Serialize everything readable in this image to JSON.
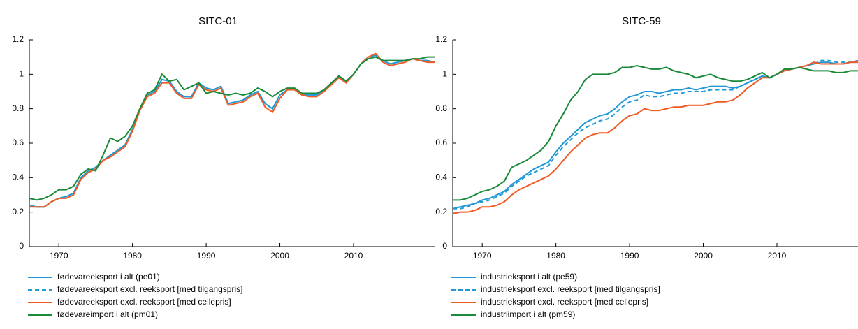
{
  "chart_data": [
    {
      "type": "line",
      "title": "SITC-01",
      "x": [
        1966,
        1967,
        1968,
        1969,
        1970,
        1971,
        1972,
        1973,
        1974,
        1975,
        1976,
        1977,
        1978,
        1979,
        1980,
        1981,
        1982,
        1983,
        1984,
        1985,
        1986,
        1987,
        1988,
        1989,
        1990,
        1991,
        1992,
        1993,
        1994,
        1995,
        1996,
        1997,
        1998,
        1999,
        2000,
        2001,
        2002,
        2003,
        2004,
        2005,
        2006,
        2007,
        2008,
        2009,
        2010,
        2011,
        2012,
        2013,
        2014,
        2015,
        2016,
        2017,
        2018,
        2019,
        2020,
        2021
      ],
      "xlim": [
        1966,
        2021
      ],
      "xticks": [
        1970,
        1980,
        1990,
        2000,
        2010
      ],
      "ylim": [
        0,
        1.2
      ],
      "yticks": [
        0,
        0.2,
        0.4,
        0.6,
        0.8,
        1,
        1.2
      ],
      "series": [
        {
          "name": "fødevareeksport i alt (pe01)",
          "color": "#1f9ad6",
          "values": [
            0.24,
            0.23,
            0.23,
            0.26,
            0.28,
            0.29,
            0.31,
            0.4,
            0.44,
            0.46,
            0.5,
            0.53,
            0.56,
            0.59,
            0.68,
            0.8,
            0.88,
            0.9,
            0.97,
            0.96,
            0.9,
            0.87,
            0.87,
            0.95,
            0.92,
            0.91,
            0.93,
            0.83,
            0.84,
            0.85,
            0.88,
            0.9,
            0.83,
            0.8,
            0.88,
            0.91,
            0.91,
            0.88,
            0.88,
            0.88,
            0.91,
            0.95,
            0.99,
            0.96,
            1.0,
            1.06,
            1.1,
            1.11,
            1.08,
            1.06,
            1.07,
            1.08,
            1.09,
            1.08,
            1.08,
            1.07
          ]
        },
        {
          "name": "fødevareeksport excl. reeksport [med tilgangspris]",
          "color": "#1f9ad6",
          "dashed": true,
          "values": [
            0.24,
            0.23,
            0.23,
            0.26,
            0.28,
            0.29,
            0.31,
            0.4,
            0.44,
            0.46,
            0.5,
            0.53,
            0.56,
            0.59,
            0.68,
            0.8,
            0.88,
            0.9,
            0.97,
            0.96,
            0.9,
            0.87,
            0.87,
            0.95,
            0.92,
            0.91,
            0.93,
            0.83,
            0.84,
            0.85,
            0.88,
            0.9,
            0.83,
            0.8,
            0.88,
            0.91,
            0.91,
            0.88,
            0.88,
            0.88,
            0.91,
            0.95,
            0.99,
            0.96,
            1.0,
            1.06,
            1.1,
            1.11,
            1.08,
            1.06,
            1.07,
            1.08,
            1.09,
            1.08,
            1.08,
            1.07
          ]
        },
        {
          "name": "fødevareeksport excl. reeksport [med cellepris]",
          "color": "#f15a24",
          "values": [
            0.23,
            0.23,
            0.23,
            0.26,
            0.28,
            0.28,
            0.3,
            0.39,
            0.43,
            0.45,
            0.5,
            0.52,
            0.55,
            0.58,
            0.67,
            0.79,
            0.87,
            0.89,
            0.95,
            0.95,
            0.89,
            0.86,
            0.86,
            0.94,
            0.91,
            0.9,
            0.92,
            0.82,
            0.83,
            0.84,
            0.87,
            0.89,
            0.81,
            0.78,
            0.86,
            0.91,
            0.91,
            0.88,
            0.87,
            0.87,
            0.9,
            0.94,
            0.98,
            0.95,
            1.0,
            1.06,
            1.1,
            1.12,
            1.07,
            1.05,
            1.06,
            1.07,
            1.09,
            1.08,
            1.07,
            1.07
          ]
        },
        {
          "name": "fødevareimport i alt (pm01)",
          "color": "#1a8a3a",
          "values": [
            0.28,
            0.27,
            0.28,
            0.3,
            0.33,
            0.33,
            0.35,
            0.42,
            0.45,
            0.44,
            0.53,
            0.63,
            0.61,
            0.64,
            0.7,
            0.8,
            0.89,
            0.91,
            1.0,
            0.96,
            0.97,
            0.91,
            0.93,
            0.95,
            0.89,
            0.9,
            0.89,
            0.88,
            0.89,
            0.88,
            0.89,
            0.92,
            0.9,
            0.87,
            0.9,
            0.92,
            0.92,
            0.89,
            0.89,
            0.89,
            0.91,
            0.95,
            0.99,
            0.96,
            1.0,
            1.06,
            1.09,
            1.1,
            1.08,
            1.08,
            1.08,
            1.08,
            1.09,
            1.09,
            1.1,
            1.1
          ]
        }
      ]
    },
    {
      "type": "line",
      "title": "SITC-59",
      "x": [
        1966,
        1967,
        1968,
        1969,
        1970,
        1971,
        1972,
        1973,
        1974,
        1975,
        1976,
        1977,
        1978,
        1979,
        1980,
        1981,
        1982,
        1983,
        1984,
        1985,
        1986,
        1987,
        1988,
        1989,
        1990,
        1991,
        1992,
        1993,
        1994,
        1995,
        1996,
        1997,
        1998,
        1999,
        2000,
        2001,
        2002,
        2003,
        2004,
        2005,
        2006,
        2007,
        2008,
        2009,
        2010,
        2011,
        2012,
        2013,
        2014,
        2015,
        2016,
        2017,
        2018,
        2019,
        2020,
        2021
      ],
      "xlim": [
        1966,
        2021
      ],
      "xticks": [
        1970,
        1980,
        1990,
        2000,
        2010
      ],
      "ylim": [
        0,
        1.2
      ],
      "yticks": [
        0,
        0.2,
        0.4,
        0.6,
        0.8,
        1,
        1.2
      ],
      "series": [
        {
          "name": "industrieksport i alt (pe59)",
          "color": "#1f9ad6",
          "values": [
            0.22,
            0.23,
            0.24,
            0.25,
            0.27,
            0.28,
            0.3,
            0.32,
            0.36,
            0.39,
            0.42,
            0.45,
            0.47,
            0.49,
            0.55,
            0.6,
            0.64,
            0.68,
            0.72,
            0.74,
            0.76,
            0.77,
            0.8,
            0.84,
            0.87,
            0.88,
            0.9,
            0.9,
            0.89,
            0.9,
            0.91,
            0.91,
            0.92,
            0.91,
            0.92,
            0.93,
            0.93,
            0.93,
            0.92,
            0.93,
            0.95,
            0.97,
            0.99,
            0.98,
            1.0,
            1.02,
            1.03,
            1.04,
            1.05,
            1.06,
            1.07,
            1.07,
            1.06,
            1.06,
            1.07,
            1.07
          ]
        },
        {
          "name": "industrieksport excl. reeksport [med tilgangspris]",
          "color": "#1f9ad6",
          "dashed": true,
          "values": [
            0.22,
            0.22,
            0.23,
            0.25,
            0.26,
            0.27,
            0.29,
            0.31,
            0.35,
            0.38,
            0.41,
            0.43,
            0.45,
            0.47,
            0.53,
            0.58,
            0.62,
            0.66,
            0.69,
            0.71,
            0.73,
            0.74,
            0.77,
            0.81,
            0.84,
            0.85,
            0.88,
            0.87,
            0.87,
            0.88,
            0.89,
            0.89,
            0.9,
            0.9,
            0.9,
            0.91,
            0.91,
            0.91,
            0.91,
            0.93,
            0.95,
            0.97,
            0.99,
            0.98,
            1.0,
            1.02,
            1.03,
            1.04,
            1.05,
            1.06,
            1.08,
            1.08,
            1.07,
            1.07,
            1.07,
            1.08
          ]
        },
        {
          "name": "industrieksport excl. reeksport [med cellepris]",
          "color": "#f15a24",
          "values": [
            0.19,
            0.2,
            0.2,
            0.21,
            0.23,
            0.23,
            0.24,
            0.26,
            0.3,
            0.33,
            0.35,
            0.37,
            0.39,
            0.41,
            0.45,
            0.5,
            0.55,
            0.59,
            0.63,
            0.65,
            0.66,
            0.66,
            0.69,
            0.73,
            0.76,
            0.77,
            0.8,
            0.79,
            0.79,
            0.8,
            0.81,
            0.81,
            0.82,
            0.82,
            0.82,
            0.83,
            0.84,
            0.84,
            0.85,
            0.88,
            0.92,
            0.95,
            0.98,
            0.98,
            1.0,
            1.02,
            1.03,
            1.04,
            1.05,
            1.07,
            1.06,
            1.06,
            1.06,
            1.06,
            1.07,
            1.07
          ]
        },
        {
          "name": "industriimport i alt (pm59)",
          "color": "#1a8a3a",
          "values": [
            0.27,
            0.27,
            0.28,
            0.3,
            0.32,
            0.33,
            0.35,
            0.38,
            0.46,
            0.48,
            0.5,
            0.53,
            0.56,
            0.61,
            0.7,
            0.77,
            0.85,
            0.9,
            0.97,
            1.0,
            1.0,
            1.0,
            1.01,
            1.04,
            1.04,
            1.05,
            1.04,
            1.03,
            1.03,
            1.04,
            1.02,
            1.01,
            1.0,
            0.98,
            0.99,
            1.0,
            0.98,
            0.97,
            0.96,
            0.96,
            0.97,
            0.99,
            1.01,
            0.98,
            1.0,
            1.03,
            1.03,
            1.04,
            1.03,
            1.02,
            1.02,
            1.02,
            1.01,
            1.01,
            1.02,
            1.02
          ]
        }
      ]
    }
  ]
}
